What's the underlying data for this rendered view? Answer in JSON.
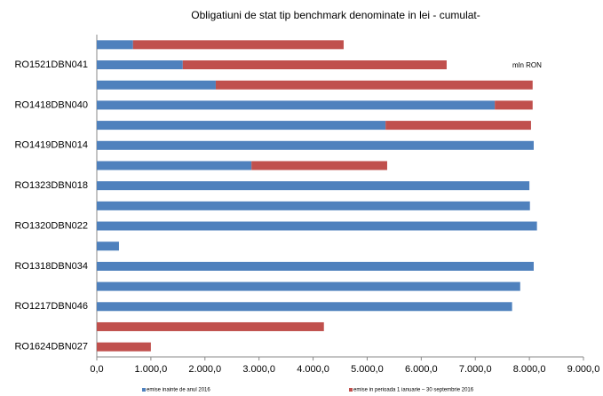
{
  "chart_data": {
    "type": "stacked-hbar",
    "title": "Obligatiuni de stat tip benchmark denominate in lei - cumulat-",
    "annotation": "mln RON",
    "categories": [
      null,
      "RO1521DBN041",
      null,
      "RO1418DBN040",
      null,
      "RO1419DBN014",
      null,
      "RO1323DBN018",
      null,
      "RO1320DBN022",
      null,
      "RO1318DBN034",
      null,
      "RO1217DBN046",
      null,
      "RO1624DBN027"
    ],
    "series": [
      {
        "name": "emise inainte de anul 2016",
        "color": "#4f81bd",
        "values": [
          670,
          1590,
          2200,
          7360,
          5340,
          8080,
          2860,
          8000,
          8010,
          8140,
          410,
          8080,
          7830,
          7680,
          0,
          0
        ]
      },
      {
        "name": "emise in perioada 1 ianuarie – 30 septembrie 2016",
        "color": "#c0504d",
        "values": [
          3895,
          4880,
          5860,
          700,
          2690,
          0,
          2510,
          0,
          0,
          0,
          0,
          0,
          0,
          0,
          4200,
          1000
        ]
      }
    ],
    "xlim": [
      0,
      9000
    ],
    "xticks": [
      {
        "value": 0,
        "label": "0,0"
      },
      {
        "value": 1000,
        "label": "1.000,0"
      },
      {
        "value": 2000,
        "label": "2.000,0"
      },
      {
        "value": 3000,
        "label": "3.000,0"
      },
      {
        "value": 4000,
        "label": "4.000,0"
      },
      {
        "value": 5000,
        "label": "5.000,0"
      },
      {
        "value": 6000,
        "label": "6.000,0"
      },
      {
        "value": 7000,
        "label": "7.000,0"
      },
      {
        "value": 8000,
        "label": "8.000,0"
      },
      {
        "value": 9000,
        "label": "9.000,0"
      }
    ],
    "legend": "bottom"
  }
}
